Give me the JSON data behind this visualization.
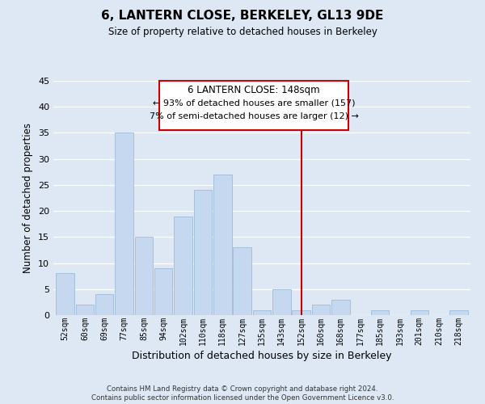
{
  "title": "6, LANTERN CLOSE, BERKELEY, GL13 9DE",
  "subtitle": "Size of property relative to detached houses in Berkeley",
  "xlabel": "Distribution of detached houses by size in Berkeley",
  "ylabel": "Number of detached properties",
  "bar_labels": [
    "52sqm",
    "60sqm",
    "69sqm",
    "77sqm",
    "85sqm",
    "94sqm",
    "102sqm",
    "110sqm",
    "118sqm",
    "127sqm",
    "135sqm",
    "143sqm",
    "152sqm",
    "160sqm",
    "168sqm",
    "177sqm",
    "185sqm",
    "193sqm",
    "201sqm",
    "210sqm",
    "218sqm"
  ],
  "bar_values": [
    8,
    2,
    4,
    35,
    15,
    9,
    19,
    24,
    27,
    13,
    1,
    5,
    1,
    2,
    3,
    0,
    1,
    0,
    1,
    0,
    1
  ],
  "bar_color": "#c5d8f0",
  "bar_edge_color": "#a0bcd8",
  "ylim": [
    0,
    45
  ],
  "yticks": [
    0,
    5,
    10,
    15,
    20,
    25,
    30,
    35,
    40,
    45
  ],
  "vline_x": 12,
  "vline_color": "#cc0000",
  "annotation_title": "6 LANTERN CLOSE: 148sqm",
  "annotation_line1": "← 93% of detached houses are smaller (157)",
  "annotation_line2": "7% of semi-detached houses are larger (12) →",
  "annotation_box_color": "#ffffff",
  "annotation_border_color": "#cc0000",
  "footer1": "Contains HM Land Registry data © Crown copyright and database right 2024.",
  "footer2": "Contains public sector information licensed under the Open Government Licence v3.0.",
  "background_color": "#dde8f4",
  "grid_color": "#ffffff"
}
